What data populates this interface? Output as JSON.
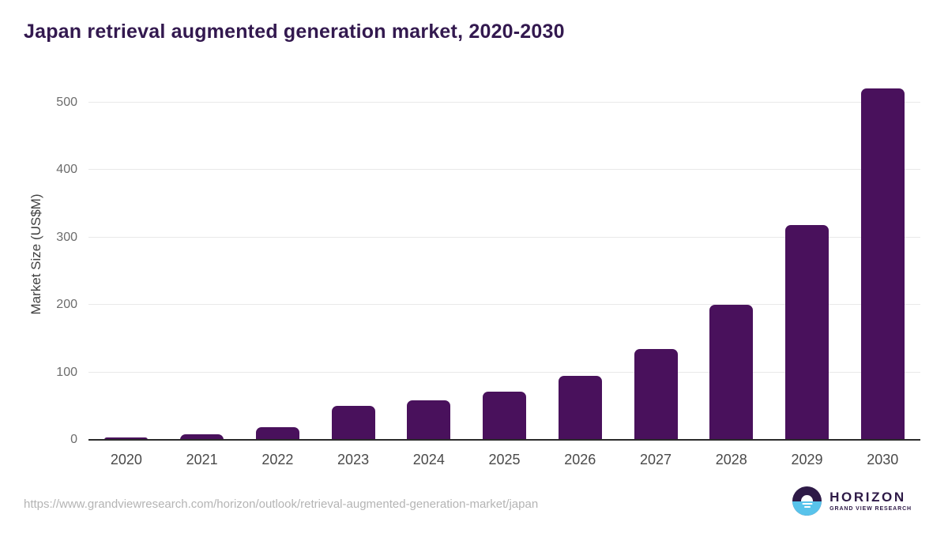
{
  "chart_data": {
    "type": "bar",
    "title": "Japan retrieval augmented generation market, 2020-2030",
    "xlabel": "",
    "ylabel": "Market Size (US$M)",
    "categories": [
      "2020",
      "2021",
      "2022",
      "2023",
      "2024",
      "2025",
      "2026",
      "2027",
      "2028",
      "2029",
      "2030"
    ],
    "values": [
      4,
      8,
      19,
      50,
      58,
      72,
      95,
      135,
      200,
      318,
      521
    ],
    "yticks": [
      0,
      100,
      200,
      300,
      400,
      500
    ],
    "ylim": [
      0,
      540
    ],
    "grid": true,
    "legend": "none",
    "bar_color": "#49115C"
  },
  "colors": {
    "title_text": "#33194F",
    "bar": "#49115C",
    "gridline": "#E9E9E9",
    "axis_line": "#2B2B2B",
    "y_tick_label": "#6C6C6C",
    "x_tick_label": "#4A4A4A",
    "y_axis_title": "#3F3F3F",
    "source_url_text": "#B4B4B4",
    "logo_purple": "#2E1A47",
    "logo_blue": "#58C3EB"
  },
  "footer": {
    "source_url": "https://www.grandviewresearch.com/horizon/outlook/retrieval-augmented-generation-market/japan",
    "logo": {
      "name": "HORIZON",
      "subtitle": "GRAND VIEW RESEARCH",
      "icon": "horizon-sunset-icon"
    }
  }
}
